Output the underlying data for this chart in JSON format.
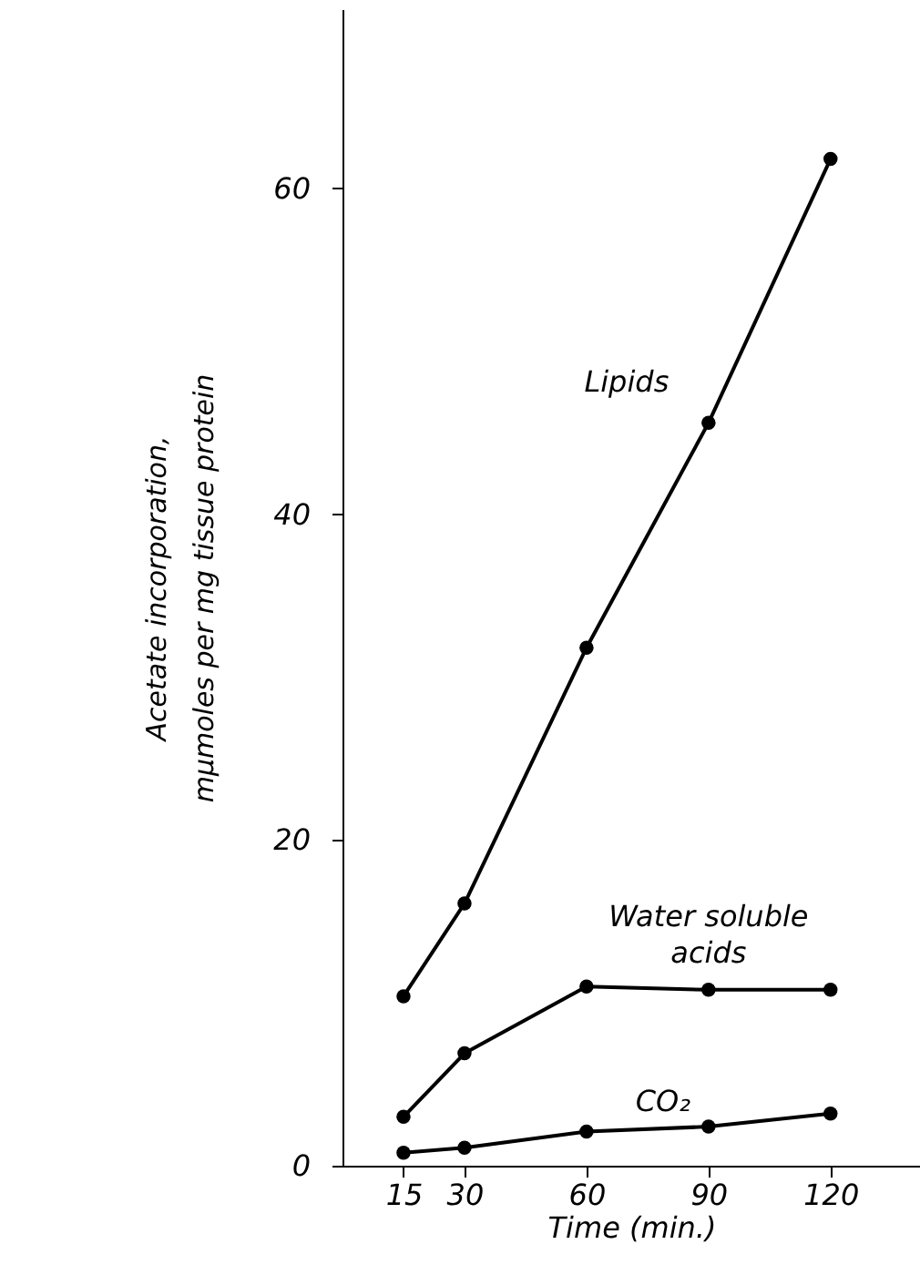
{
  "chart_data": {
    "type": "line",
    "xlabel": "Time  (min.)",
    "ylabel": "Acetate incorporation, mμmoles per mg tissue protein",
    "x": [
      15,
      30,
      60,
      90,
      120
    ],
    "series": [
      {
        "name": "Lipids",
        "color": "#000000",
        "values": [
          10.4,
          16.1,
          31.8,
          45.6,
          61.8
        ]
      },
      {
        "name": "Water soluble acids",
        "color": "#000000",
        "values": [
          3.0,
          6.9,
          11.0,
          10.8,
          10.8
        ]
      },
      {
        "name": "CO₂",
        "color": "#000000",
        "values": [
          0.8,
          1.1,
          2.1,
          2.4,
          3.2
        ]
      }
    ],
    "xlim": [
      0,
      142
    ],
    "xticks": [
      15,
      30,
      60,
      90,
      120
    ],
    "ylim": [
      0,
      71
    ],
    "yticks": [
      0,
      20,
      40,
      60
    ],
    "marker": "circle",
    "line_style": "solid",
    "grid": false
  }
}
